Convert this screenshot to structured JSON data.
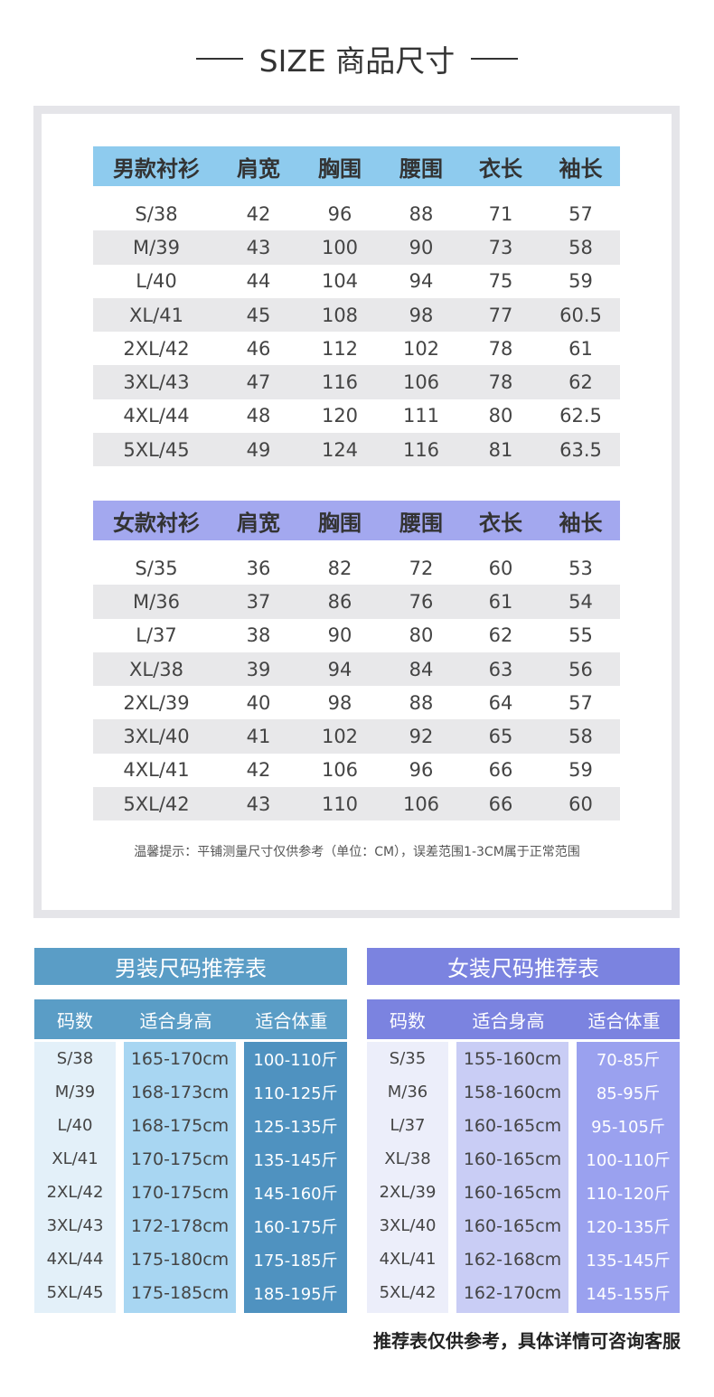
{
  "title": "SIZE 商品尺寸",
  "men_chart": {
    "headers": [
      "男款衬衫",
      "肩宽",
      "胸围",
      "腰围",
      "衣长",
      "袖长"
    ],
    "rows": [
      [
        "S/38",
        "42",
        "96",
        "88",
        "71",
        "57"
      ],
      [
        "M/39",
        "43",
        "100",
        "90",
        "73",
        "58"
      ],
      [
        "L/40",
        "44",
        "104",
        "94",
        "75",
        "59"
      ],
      [
        "XL/41",
        "45",
        "108",
        "98",
        "77",
        "60.5"
      ],
      [
        "2XL/42",
        "46",
        "112",
        "102",
        "78",
        "61"
      ],
      [
        "3XL/43",
        "47",
        "116",
        "106",
        "78",
        "62"
      ],
      [
        "4XL/44",
        "48",
        "120",
        "111",
        "80",
        "62.5"
      ],
      [
        "5XL/45",
        "49",
        "124",
        "116",
        "81",
        "63.5"
      ]
    ]
  },
  "women_chart": {
    "headers": [
      "女款衬衫",
      "肩宽",
      "胸围",
      "腰围",
      "衣长",
      "袖长"
    ],
    "rows": [
      [
        "S/35",
        "36",
        "82",
        "72",
        "60",
        "53"
      ],
      [
        "M/36",
        "37",
        "86",
        "76",
        "61",
        "54"
      ],
      [
        "L/37",
        "38",
        "90",
        "80",
        "62",
        "55"
      ],
      [
        "XL/38",
        "39",
        "94",
        "84",
        "63",
        "56"
      ],
      [
        "2XL/39",
        "40",
        "98",
        "88",
        "64",
        "57"
      ],
      [
        "3XL/40",
        "41",
        "102",
        "92",
        "65",
        "58"
      ],
      [
        "4XL/41",
        "42",
        "106",
        "96",
        "66",
        "59"
      ],
      [
        "5XL/42",
        "43",
        "110",
        "106",
        "66",
        "60"
      ]
    ]
  },
  "note": "温馨提示：平铺测量尺寸仅供参考（单位：CM），误差范围1-3CM属于正常范围",
  "men_rec": {
    "title": "男装尺码推荐表",
    "headers": [
      "码数",
      "适合身高",
      "适合体重"
    ],
    "sizes": [
      "S/38",
      "M/39",
      "L/40",
      "XL/41",
      "2XL/42",
      "3XL/43",
      "4XL/44",
      "5XL/45"
    ],
    "heights": [
      "165-170cm",
      "168-173cm",
      "168-175cm",
      "170-175cm",
      "170-175cm",
      "172-178cm",
      "175-180cm",
      "175-185cm"
    ],
    "weights": [
      "100-110斤",
      "110-125斤",
      "125-135斤",
      "135-145斤",
      "145-160斤",
      "160-175斤",
      "175-185斤",
      "185-195斤"
    ]
  },
  "women_rec": {
    "title": "女装尺码推荐表",
    "headers": [
      "码数",
      "适合身高",
      "适合体重"
    ],
    "sizes": [
      "S/35",
      "M/36",
      "L/37",
      "XL/38",
      "2XL/39",
      "3XL/40",
      "4XL/41",
      "5XL/42"
    ],
    "heights": [
      "155-160cm",
      "158-160cm",
      "160-165cm",
      "160-165cm",
      "160-165cm",
      "160-165cm",
      "162-168cm",
      "162-170cm"
    ],
    "weights": [
      "70-85斤",
      "85-95斤",
      "95-105斤",
      "100-110斤",
      "110-120斤",
      "120-135斤",
      "135-145斤",
      "145-155斤"
    ]
  },
  "footnote": "推荐表仅供参考，具体详情可咨询客服",
  "colors": {
    "men_header": "#8ecbee",
    "women_header": "#a3a8ef",
    "men_rec": "#5a9dc6",
    "women_rec": "#7b83e0"
  }
}
